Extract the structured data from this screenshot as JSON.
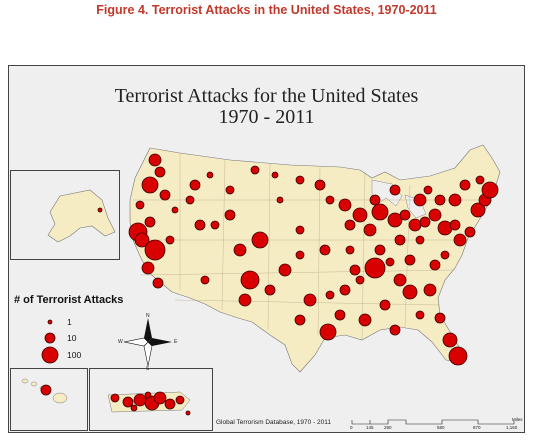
{
  "figure_caption": "Figure 4.  Terrorist Attacks in the United States, 1970-2011",
  "map_title_line1": "Terrorist Attacks for the United States",
  "map_title_line2": "1970 - 2011",
  "legend": {
    "title": "# of Terrorist Attacks",
    "items": [
      {
        "label": "1",
        "value": 1
      },
      {
        "label": "10",
        "value": 10
      },
      {
        "label": "100",
        "value": 100
      }
    ]
  },
  "compass": {
    "n": "N",
    "s": "S",
    "e": "E",
    "w": "W"
  },
  "source": "Global Terrorism Database, 1970 - 2011",
  "scale": {
    "labels": [
      "0",
      "145",
      "290",
      "580",
      "870",
      "1,160"
    ],
    "unit": "Miles"
  },
  "colors": {
    "land": "#f5ecc4",
    "water": "#efefef",
    "marker_fill": "#d80000",
    "marker_stroke": "#3a0000",
    "caption": "#c0392b"
  }
}
